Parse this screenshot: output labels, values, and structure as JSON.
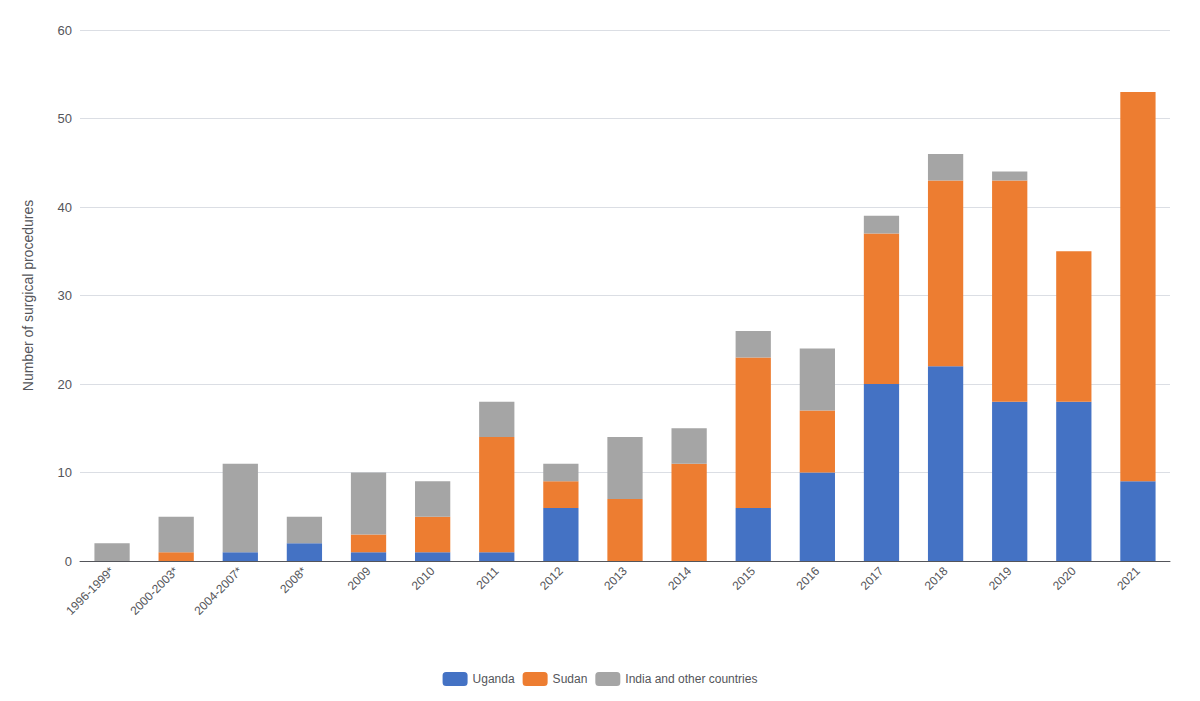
{
  "chart_data": {
    "type": "bar",
    "stacked": true,
    "categories": [
      "1996-1999*",
      "2000-2003*",
      "2004-2007*",
      "2008*",
      "2009",
      "2010",
      "2011",
      "2012",
      "2013",
      "2014",
      "2015",
      "2016",
      "2017",
      "2018",
      "2019",
      "2020",
      "2021"
    ],
    "series": [
      {
        "name": "Uganda",
        "color": "#4472c4",
        "values": [
          0,
          0,
          1,
          2,
          1,
          1,
          1,
          6,
          0,
          0,
          6,
          10,
          20,
          22,
          18,
          18,
          9
        ]
      },
      {
        "name": "Sudan",
        "color": "#ed7d31",
        "values": [
          0,
          1,
          0,
          0,
          2,
          4,
          13,
          3,
          7,
          11,
          17,
          7,
          17,
          21,
          25,
          17,
          44
        ]
      },
      {
        "name": "India and other countries",
        "color": "#a5a5a5",
        "values": [
          2,
          4,
          10,
          3,
          7,
          4,
          4,
          2,
          7,
          4,
          3,
          7,
          2,
          3,
          1,
          0,
          0
        ]
      }
    ],
    "ylabel": "Number of surgical procedures",
    "ylim": [
      0,
      60
    ],
    "yticks": [
      0,
      10,
      20,
      30,
      40,
      50,
      60
    ],
    "grid": true,
    "legend": "bottom"
  }
}
